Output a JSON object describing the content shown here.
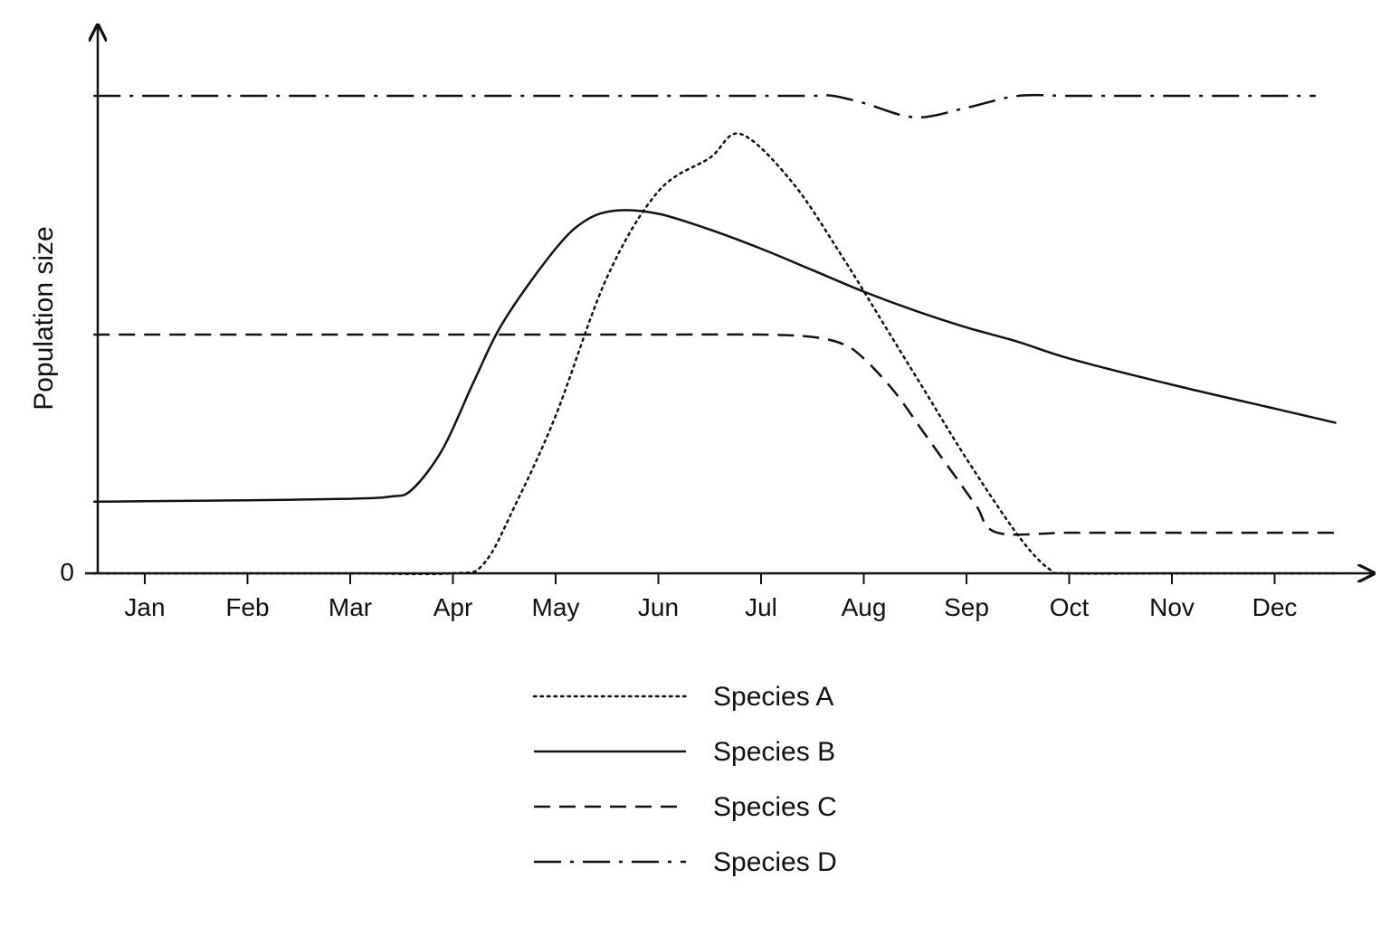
{
  "chart_data": {
    "type": "line",
    "ylabel": "Population size",
    "xlabel": "",
    "y_tick_labels": [
      "0"
    ],
    "categories": [
      "Jan",
      "Feb",
      "Mar",
      "Apr",
      "May",
      "Jun",
      "Jul",
      "Aug",
      "Sep",
      "Oct",
      "Nov",
      "Dec"
    ],
    "xlim": [
      0.5,
      12.5
    ],
    "ylim": [
      0,
      100
    ],
    "grid": false,
    "legend_position": "bottom",
    "series": [
      {
        "name": "Species A",
        "style": "dotted",
        "color": "#111111",
        "x": [
          0.5,
          1,
          2,
          3,
          4,
          4.3,
          4.6,
          5,
          5.5,
          6,
          6.5,
          6.8,
          7.3,
          7.8,
          8.2,
          8.6,
          9,
          9.5,
          9.8,
          10,
          11,
          12,
          12.6
        ],
        "y": [
          0,
          0,
          0,
          0,
          0,
          2,
          14,
          33,
          62,
          80,
          87,
          92,
          82,
          66,
          52,
          38,
          24,
          8,
          1,
          0,
          0,
          0,
          0
        ]
      },
      {
        "name": "Species B",
        "style": "solid",
        "color": "#111111",
        "x": [
          0.5,
          1,
          2,
          3,
          3.4,
          3.6,
          3.9,
          4.2,
          4.5,
          5,
          5.3,
          5.6,
          6,
          6.5,
          7,
          7.5,
          8,
          8.5,
          9,
          9.5,
          10,
          11,
          12,
          12.6
        ],
        "y": [
          15,
          15.1,
          15.3,
          15.6,
          16.1,
          17.5,
          26,
          40,
          53,
          68,
          74,
          76,
          75.3,
          72,
          68,
          63.5,
          59,
          55,
          51.5,
          48.5,
          45,
          39.5,
          34.5,
          31.5
        ]
      },
      {
        "name": "Species C",
        "style": "dashed",
        "color": "#111111",
        "x": [
          0.5,
          1,
          2,
          3,
          4,
          5,
          6,
          7,
          7.5,
          7.8,
          8,
          8.3,
          8.6,
          8.9,
          9.1,
          9.3,
          10,
          11,
          12,
          12.6
        ],
        "y": [
          50,
          50,
          50,
          50,
          50,
          50,
          50,
          50,
          49.5,
          48,
          45,
          38,
          29,
          20,
          14,
          8.5,
          8.5,
          8.5,
          8.5,
          8.5
        ]
      },
      {
        "name": "Species D",
        "style": "dash-dot",
        "color": "#111111",
        "x": [
          0.5,
          1,
          2,
          3,
          4,
          5,
          6,
          7,
          7.5,
          7.7,
          8,
          8.5,
          9,
          9.5,
          10,
          11,
          12,
          12.4
        ],
        "y": [
          100,
          100,
          100,
          100,
          100,
          100,
          100,
          100,
          100,
          100,
          98.5,
          95.5,
          97.5,
          100,
          100,
          100,
          100,
          100
        ]
      }
    ]
  }
}
